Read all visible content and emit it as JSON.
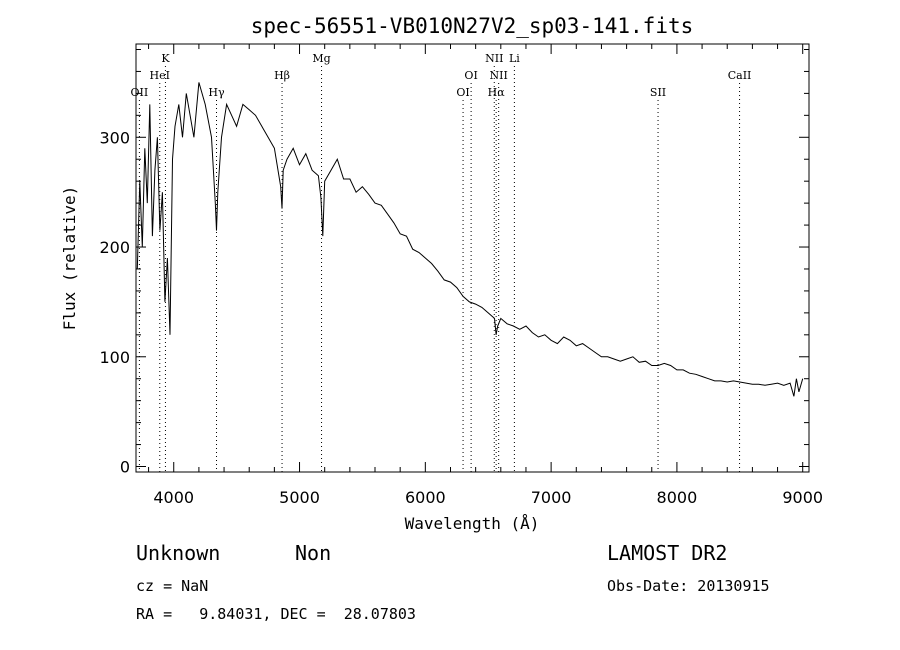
{
  "footer": {
    "object_class": "Unknown",
    "object_subclass": "Non",
    "cz": "cz = NaN",
    "coords": "RA =   9.84031, DEC =  28.07803",
    "survey": "LAMOST DR2",
    "obs_date": "Obs-Date: 20130915"
  },
  "chart_data": {
    "type": "line",
    "title": "spec-56551-VB010N27V2_sp03-141.fits",
    "xlabel": "Wavelength (Å)",
    "ylabel": "Flux (relative)",
    "xlim": [
      3700,
      9050
    ],
    "ylim": [
      -5,
      385
    ],
    "xticks": [
      4000,
      5000,
      6000,
      7000,
      8000,
      9000
    ],
    "yticks": [
      0,
      100,
      200,
      300
    ],
    "grid": false,
    "line_color": "#000000",
    "marker_color": "#000000",
    "series": [
      {
        "x": [
          3710,
          3730,
          3750,
          3770,
          3790,
          3810,
          3830,
          3850,
          3870,
          3890,
          3910,
          3930,
          3950,
          3970,
          3990,
          4010,
          4040,
          4070,
          4100,
          4130,
          4160,
          4200,
          4250,
          4300,
          4330,
          4340,
          4350,
          4380,
          4420,
          4460,
          4500,
          4550,
          4600,
          4650,
          4700,
          4750,
          4800,
          4850,
          4861,
          4870,
          4900,
          4950,
          5000,
          5050,
          5100,
          5150,
          5170,
          5185,
          5200,
          5250,
          5300,
          5350,
          5400,
          5450,
          5500,
          5550,
          5600,
          5650,
          5700,
          5750,
          5800,
          5850,
          5900,
          5950,
          6000,
          6050,
          6100,
          6150,
          6200,
          6250,
          6300,
          6350,
          6400,
          6450,
          6500,
          6550,
          6563,
          6575,
          6600,
          6650,
          6700,
          6750,
          6800,
          6850,
          6900,
          6950,
          7000,
          7050,
          7100,
          7150,
          7200,
          7250,
          7300,
          7350,
          7400,
          7450,
          7500,
          7550,
          7600,
          7650,
          7700,
          7750,
          7800,
          7850,
          7900,
          7950,
          8000,
          8050,
          8100,
          8150,
          8200,
          8250,
          8300,
          8350,
          8400,
          8450,
          8500,
          8550,
          8600,
          8650,
          8700,
          8750,
          8800,
          8850,
          8900,
          8930,
          8950,
          8970,
          9000
        ],
        "y": [
          180,
          260,
          200,
          290,
          240,
          330,
          210,
          270,
          300,
          215,
          250,
          150,
          190,
          120,
          280,
          310,
          330,
          300,
          340,
          320,
          300,
          350,
          330,
          300,
          240,
          215,
          250,
          300,
          330,
          320,
          310,
          330,
          325,
          320,
          310,
          300,
          290,
          255,
          235,
          270,
          280,
          290,
          275,
          285,
          270,
          265,
          245,
          210,
          260,
          270,
          280,
          262,
          262,
          250,
          255,
          248,
          240,
          238,
          230,
          222,
          212,
          210,
          198,
          195,
          190,
          185,
          178,
          170,
          168,
          163,
          155,
          150,
          148,
          145,
          140,
          135,
          120,
          128,
          135,
          130,
          128,
          125,
          128,
          122,
          118,
          120,
          115,
          112,
          118,
          115,
          110,
          112,
          108,
          104,
          100,
          100,
          98,
          96,
          98,
          100,
          95,
          96,
          92,
          92,
          94,
          92,
          88,
          88,
          85,
          84,
          82,
          80,
          78,
          78,
          77,
          78,
          77,
          76,
          75,
          75,
          74,
          75,
          76,
          74,
          76,
          64,
          80,
          68,
          80
        ]
      }
    ],
    "spectral_lines": [
      {
        "label": "OII",
        "x": 3727,
        "row": 3
      },
      {
        "label": "K",
        "x": 3934,
        "row": 1
      },
      {
        "label": "HeI",
        "x": 3889,
        "row": 2
      },
      {
        "label": "Hγ",
        "x": 4340,
        "row": 3
      },
      {
        "label": "Hβ",
        "x": 4861,
        "row": 2
      },
      {
        "label": "Mg",
        "x": 5175,
        "row": 1
      },
      {
        "label": "OI",
        "x": 6300,
        "row": 3
      },
      {
        "label": "OI",
        "x": 6364,
        "row": 2
      },
      {
        "label": "NII",
        "x": 6548,
        "row": 1
      },
      {
        "label": "NII",
        "x": 6583,
        "row": 2
      },
      {
        "label": "Hα",
        "x": 6563,
        "row": 3
      },
      {
        "label": "Li",
        "x": 6708,
        "row": 1
      },
      {
        "label": "SII",
        "x": 7850,
        "row": 3
      },
      {
        "label": "CaII",
        "x": 8498,
        "row": 2
      }
    ]
  }
}
